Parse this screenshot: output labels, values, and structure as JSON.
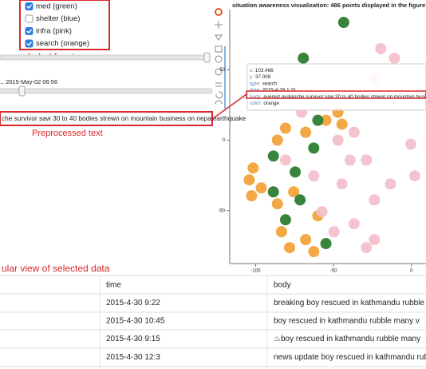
{
  "facets": [
    {
      "label": "med (green)",
      "checked": true
    },
    {
      "label": "shelter (blue)",
      "checked": false
    },
    {
      "label": "infra (pink)",
      "checked": true
    },
    {
      "label": "search (orange)",
      "checked": true
    }
  ],
  "facets_caption": "Label facets",
  "slider_label": "‥ 2015-May-02 06:56",
  "preprocessed_text": "che survivor saw 30 to 40 bodies strewn on mountain business on nepalearthquake",
  "preprocessed_caption": "Preprocessed text",
  "chart_data": {
    "type": "scatter",
    "title": "situation awareness visualization: 486 points displayed in the figure!",
    "xlim": [
      -116.6,
      9.3
    ],
    "ylim": [
      -87.6,
      92.7
    ],
    "xticks": [
      -100,
      -50,
      0
    ],
    "yticks": [
      -50,
      0,
      50
    ],
    "series": [
      {
        "name": "search",
        "color": "#f2a33a",
        "x": [
          -101.6,
          -104.1,
          -96.4,
          -102.6,
          -86,
          -80.8,
          -67.9,
          -54.9,
          -47.2,
          -75.6,
          -67.9,
          -62.7,
          -78.2,
          -60.1,
          -44.6,
          -83.4,
          -86
        ],
        "values": [
          -19.8,
          -28.2,
          -33.9,
          -39.5,
          0,
          8.5,
          5.6,
          14.1,
          19.8,
          -36.7,
          -70.6,
          -79.1,
          -76.3,
          -53.7,
          11.3,
          -65,
          -45.2
        ]
      },
      {
        "name": "infra",
        "color": "#f4c0cb",
        "x": [
          -19.7,
          -10.9,
          -23.8,
          -47.2,
          -36.8,
          -29,
          -44.6,
          -23.8,
          -36.8,
          -23.8,
          -49.7,
          -57.5,
          2.1,
          -0.5,
          -70.5,
          -80.8,
          -62.7,
          -29,
          -39.4,
          -13.5
        ],
        "values": [
          65,
          58.2,
          43.5,
          0,
          5.6,
          -14.1,
          -31.1,
          -42.4,
          -59.3,
          -70.6,
          -65,
          -50.8,
          -25.4,
          -2.8,
          19.8,
          -14.1,
          -25.4,
          -76.3,
          -14.1,
          -31.1
        ]
      },
      {
        "name": "med",
        "color": "#2e7d32",
        "x": [
          -43.5,
          -69.4,
          -60.1,
          -62.7,
          -88.6,
          -74.6,
          -88.6,
          -80.8,
          -54.9,
          -71.5
        ],
        "values": [
          83.6,
          58.2,
          14.1,
          -5.6,
          -11.3,
          -22.6,
          -36.7,
          -56.5,
          -73.4,
          -42.4
        ]
      }
    ]
  },
  "tooltip": [
    {
      "key": "x:",
      "value": "103.466"
    },
    {
      "key": "y:",
      "value": "37.008"
    },
    {
      "key": "type:",
      "value": "search"
    },
    {
      "key": "time:",
      "value": "2015-4-28 1:31"
    },
    {
      "key": "body:",
      "value": "everest avalanche survivor saw 30 to 40 bodies strewn on mountain business on"
    },
    {
      "key": "color:",
      "value": "orange"
    }
  ],
  "table_caption": "ular view of selected data",
  "table": {
    "header": [
      "time",
      "body"
    ],
    "rows": [
      [
        "2015-4-30 9:22",
        "breaking boy rescued in kathmandu rubble"
      ],
      [
        "2015-4-30 10:45",
        "boy rescued in kathmandu rubble many v"
      ],
      [
        "2015-4-30 9:15",
        "♨boy rescued in kathmandu rubble many"
      ],
      [
        "2015-4-30 12:3",
        "news update boy rescued in kathmandu rubble m"
      ]
    ]
  }
}
